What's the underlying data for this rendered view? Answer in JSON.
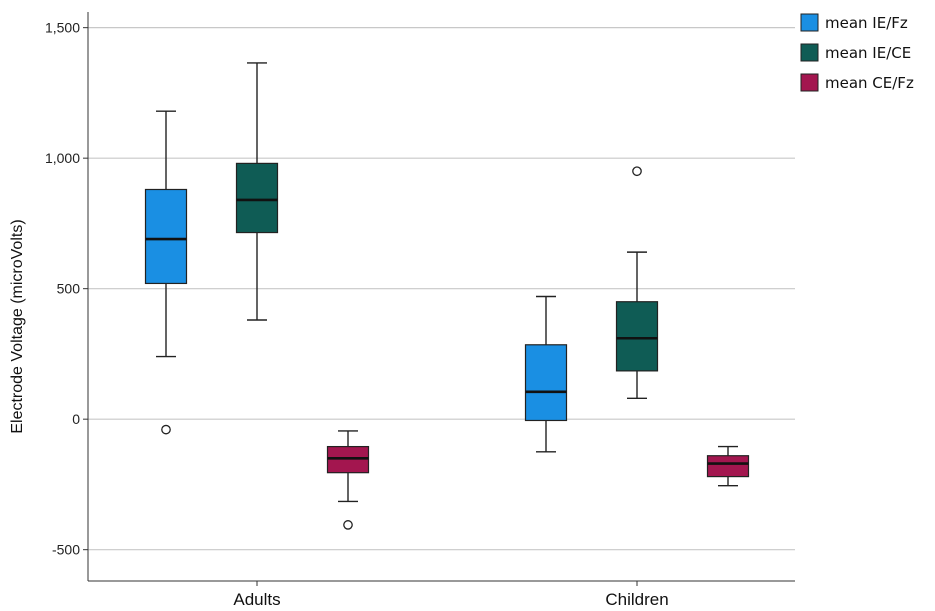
{
  "chart_data": {
    "type": "boxplot",
    "title": "",
    "xlabel": "",
    "ylabel": "Electrode Voltage (microVolts)",
    "ylim": [
      -620,
      1560
    ],
    "yticks": [
      -500,
      0,
      500,
      1000,
      1500
    ],
    "ytick_labels": [
      "-500",
      "0",
      "500",
      "1,000",
      "1,500"
    ],
    "grid": true,
    "legend_position": "top-right",
    "categories": [
      "Adults",
      "Children"
    ],
    "series": [
      {
        "name": "mean IE/Fz",
        "color": "#1a8fe3",
        "boxes": [
          {
            "whisker_low": 240,
            "q1": 520,
            "median": 690,
            "q3": 880,
            "whisker_high": 1180,
            "outliers": [
              -40
            ]
          },
          {
            "whisker_low": -125,
            "q1": -5,
            "median": 105,
            "q3": 285,
            "whisker_high": 470,
            "outliers": []
          }
        ]
      },
      {
        "name": "mean IE/CE",
        "color": "#0f5c55",
        "boxes": [
          {
            "whisker_low": 380,
            "q1": 715,
            "median": 840,
            "q3": 980,
            "whisker_high": 1365,
            "outliers": []
          },
          {
            "whisker_low": 80,
            "q1": 185,
            "median": 310,
            "q3": 450,
            "whisker_high": 640,
            "outliers": [
              950
            ]
          }
        ]
      },
      {
        "name": "mean CE/Fz",
        "color": "#a3164f",
        "boxes": [
          {
            "whisker_low": -315,
            "q1": -205,
            "median": -150,
            "q3": -105,
            "whisker_high": -45,
            "outliers": [
              -405
            ]
          },
          {
            "whisker_low": -255,
            "q1": -220,
            "median": -170,
            "q3": -140,
            "whisker_high": -105,
            "outliers": []
          }
        ]
      }
    ]
  }
}
